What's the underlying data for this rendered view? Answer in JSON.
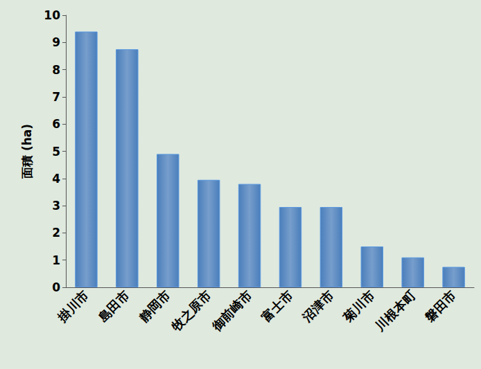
{
  "chart_data": {
    "type": "bar",
    "y_label": "面積 (ha)",
    "categories": [
      "掛川市",
      "島田市",
      "静岡市",
      "牧之原市",
      "御前崎市",
      "富士市",
      "沼津市",
      "菊川市",
      "川根本町",
      "磐田市"
    ],
    "values": [
      9.4,
      8.75,
      4.9,
      3.95,
      3.8,
      2.95,
      2.95,
      1.5,
      1.1,
      0.75
    ],
    "color": "#4a7ebb",
    "ylim": [
      0,
      10
    ],
    "yticks": [
      0,
      1,
      2,
      3,
      4,
      5,
      6,
      7,
      8,
      9,
      10
    ],
    "grid": false
  }
}
